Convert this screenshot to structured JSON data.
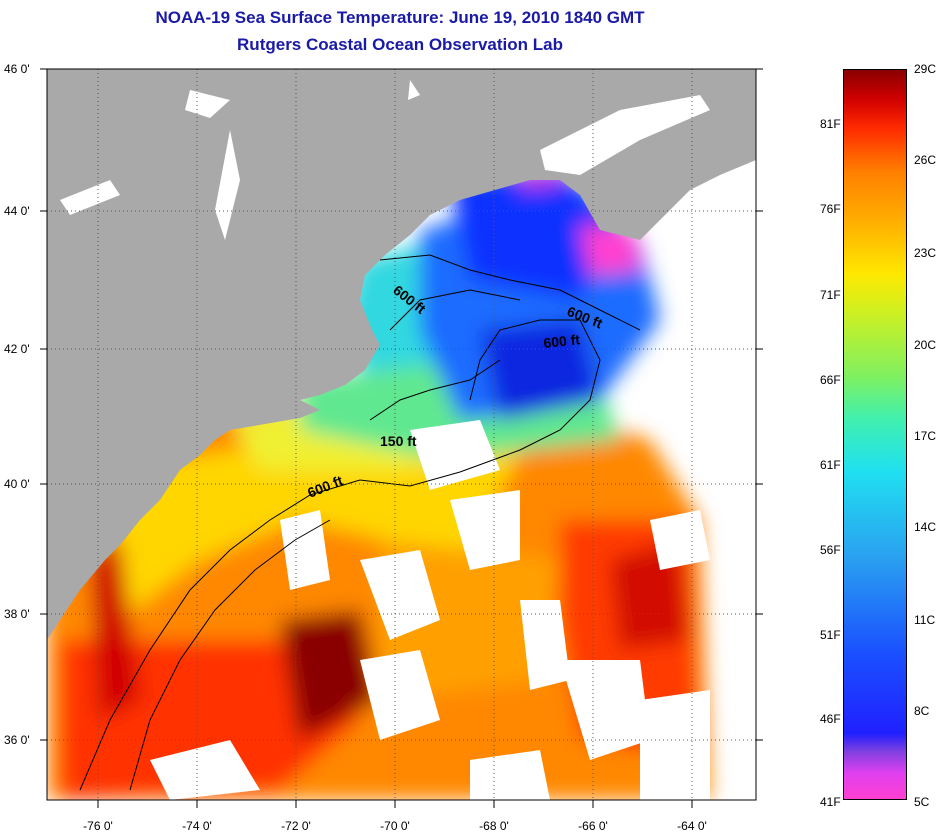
{
  "header": {
    "title": "NOAA-19 Sea Surface Temperature:  June 19, 2010 1840 GMT",
    "subtitle": "Rutgers Coastal Ocean Observation Lab"
  },
  "map": {
    "lat_labels": [
      "46 0'",
      "44 0'",
      "42 0'",
      "40 0'",
      "38 0'",
      "36 0'"
    ],
    "lon_labels": [
      "-76 0'",
      "-74 0'",
      "-72 0'",
      "-70 0'",
      "-68 0'",
      "-66 0'",
      "-64 0'"
    ],
    "contour_labels": [
      "600 ft",
      "600 ft",
      "600 ft",
      "150 ft",
      "600 ft"
    ],
    "colors": {
      "land": "#a9a9a9",
      "cloud": "#ffffff",
      "cold": "#1a30ff",
      "cool": "#30d0f0",
      "mild": "#f0f020",
      "warm": "#ff8000",
      "hot": "#8a0000",
      "contour": "#000000"
    }
  },
  "colorbar": {
    "fahrenheit": [
      "81F",
      "76F",
      "71F",
      "66F",
      "61F",
      "56F",
      "51F",
      "46F",
      "41F"
    ],
    "celsius": [
      "29C",
      "26C",
      "23C",
      "20C",
      "17C",
      "14C",
      "11C",
      "8C",
      "5C"
    ],
    "range_celsius": [
      5,
      29
    ]
  }
}
